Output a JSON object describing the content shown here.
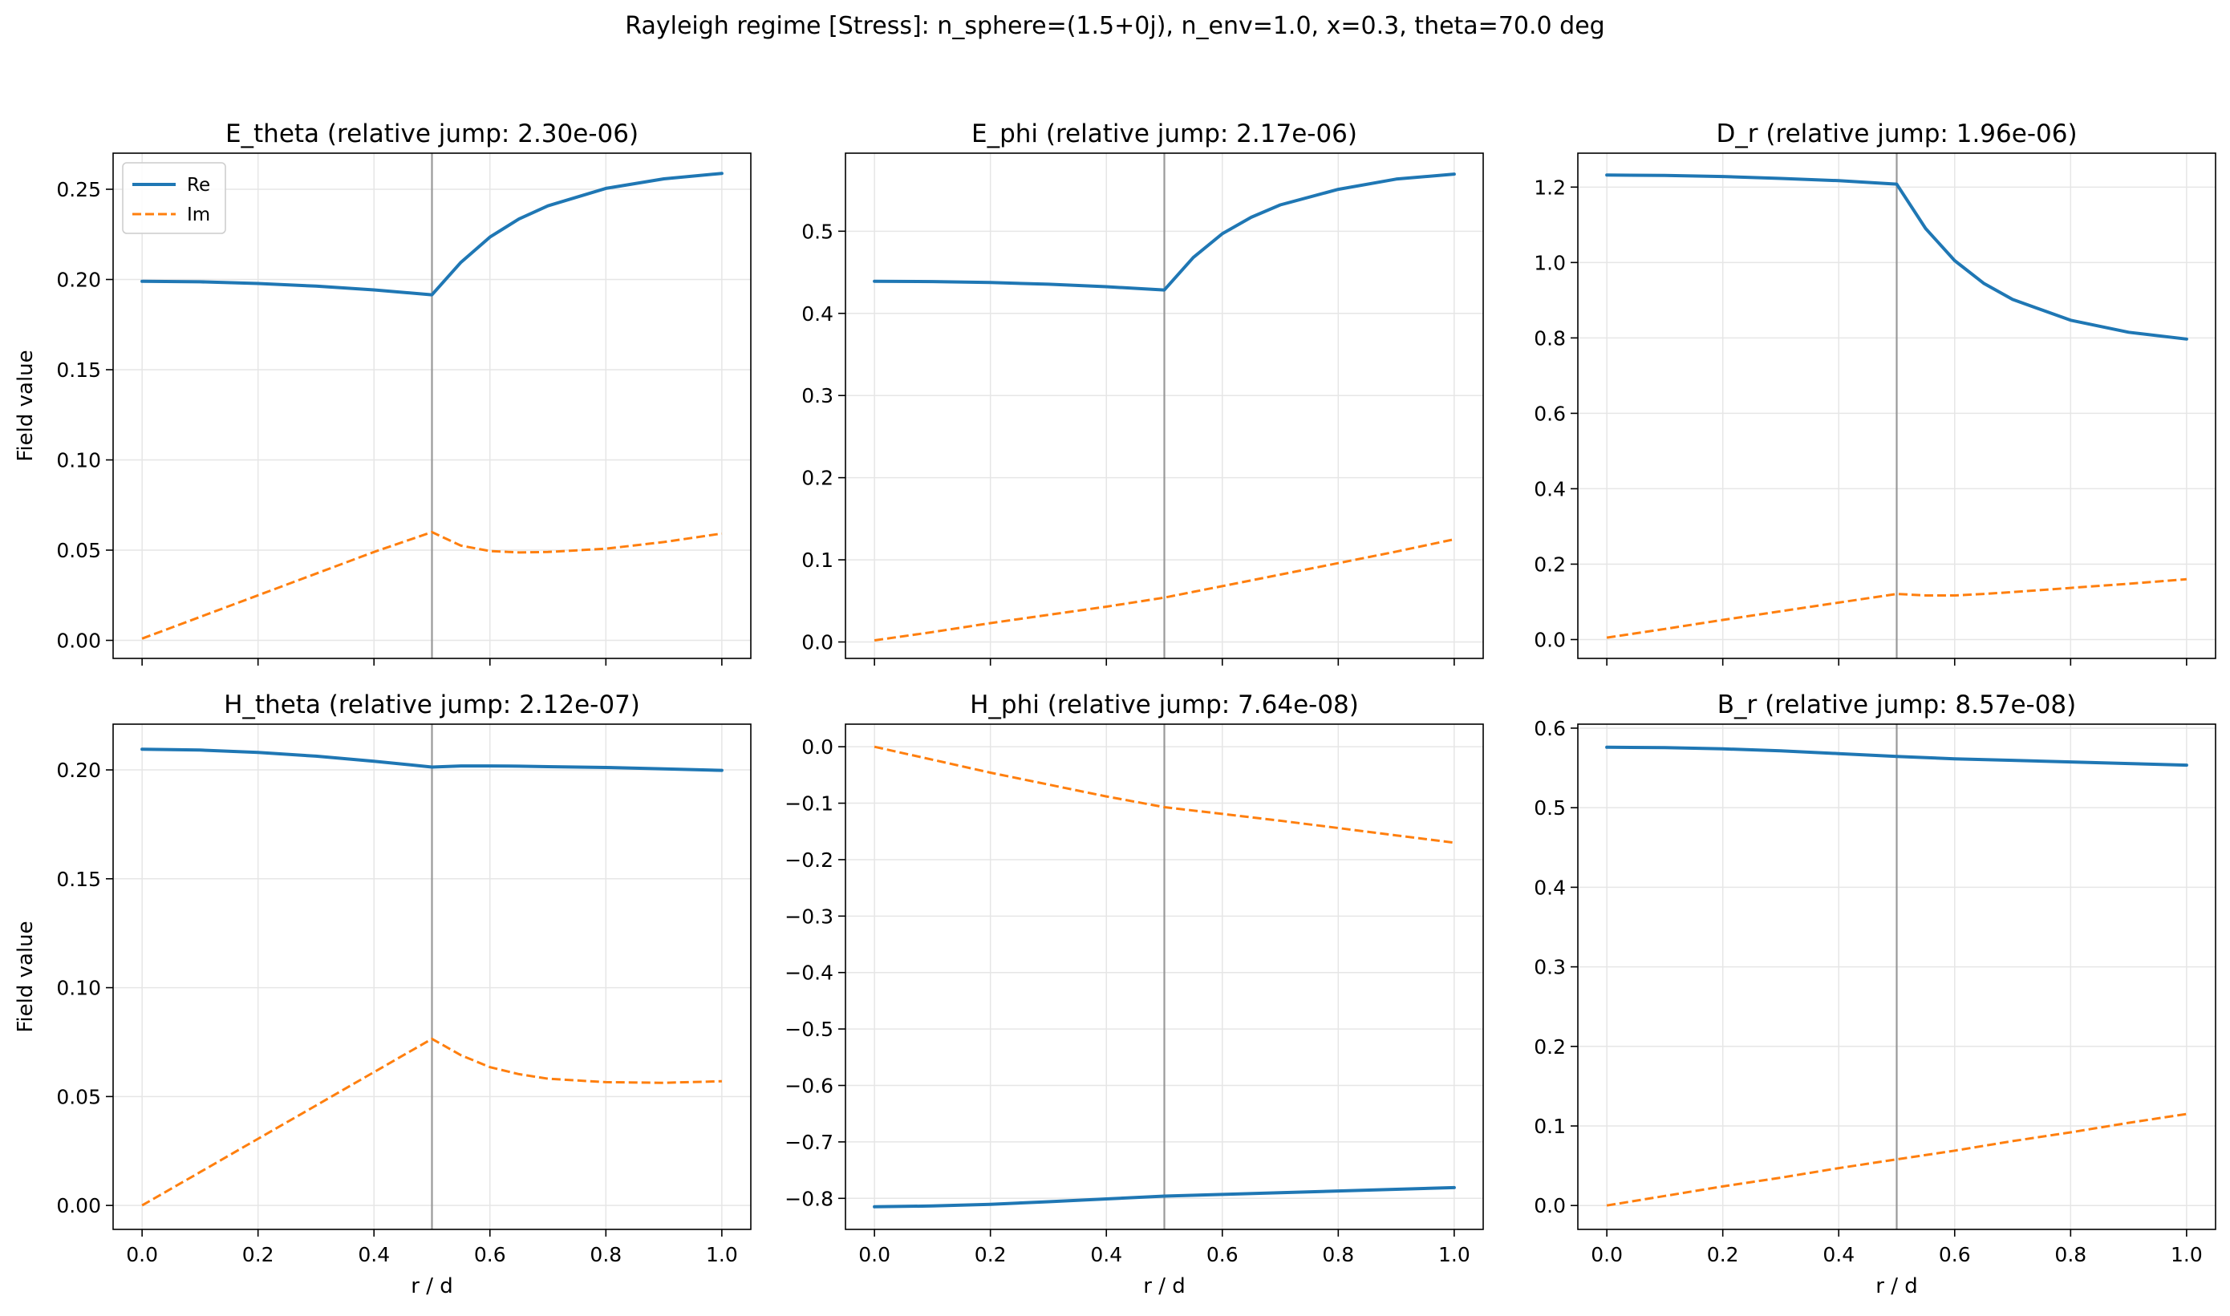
{
  "figure": {
    "suptitle": "Rayleigh regime [Stress]: n_sphere=(1.5+0j), n_env=1.0, x=0.3, theta=70.0 deg"
  },
  "colors": {
    "re": "#1f77b4",
    "im": "#ff7f0e",
    "boundary": "#999999",
    "grid": "#e6e6e6"
  },
  "legend": {
    "placement": "upper-left",
    "entries": [
      "Re",
      "Im"
    ]
  },
  "chart_data": [
    {
      "type": "line",
      "title": "E_theta (relative jump: 2.30e-06)",
      "xlabel": "",
      "ylabel": "Field value",
      "xlim": [
        -0.05,
        1.05
      ],
      "ylim": [
        -0.01,
        0.27
      ],
      "xticks": [
        0.0,
        0.2,
        0.4,
        0.6,
        0.8,
        1.0
      ],
      "xtick_labels": false,
      "yticks": [
        0.0,
        0.05,
        0.1,
        0.15,
        0.2,
        0.25
      ],
      "yticklabels": [
        "0.00",
        "0.05",
        "0.10",
        "0.15",
        "0.20",
        "0.25"
      ],
      "boundary_x": 0.5,
      "grid": true,
      "legend": true,
      "x": [
        0.0,
        0.1,
        0.2,
        0.3,
        0.4,
        0.5,
        0.55,
        0.6,
        0.65,
        0.7,
        0.8,
        0.9,
        1.0
      ],
      "series": [
        {
          "name": "Re",
          "style": "solid",
          "values": [
            0.199,
            0.1987,
            0.1978,
            0.1963,
            0.1942,
            0.1915,
            0.2095,
            0.2235,
            0.2335,
            0.2408,
            0.2505,
            0.2558,
            0.2588
          ]
        },
        {
          "name": "Im",
          "style": "dashed",
          "values": [
            0.001,
            0.013,
            0.025,
            0.037,
            0.049,
            0.06,
            0.0525,
            0.0495,
            0.0487,
            0.049,
            0.0508,
            0.0545,
            0.0592
          ]
        }
      ]
    },
    {
      "type": "line",
      "title": "E_phi (relative jump: 2.17e-06)",
      "xlabel": "",
      "ylabel": "",
      "xlim": [
        -0.05,
        1.05
      ],
      "ylim": [
        -0.02,
        0.595
      ],
      "xticks": [
        0.0,
        0.2,
        0.4,
        0.6,
        0.8,
        1.0
      ],
      "xtick_labels": false,
      "yticks": [
        0.0,
        0.1,
        0.2,
        0.3,
        0.4,
        0.5
      ],
      "yticklabels": [
        "0.0",
        "0.1",
        "0.2",
        "0.3",
        "0.4",
        "0.5"
      ],
      "boundary_x": 0.5,
      "grid": true,
      "legend": false,
      "x": [
        0.0,
        0.1,
        0.2,
        0.3,
        0.4,
        0.5,
        0.55,
        0.6,
        0.65,
        0.7,
        0.8,
        0.9,
        1.0
      ],
      "series": [
        {
          "name": "Re",
          "style": "solid",
          "values": [
            0.439,
            0.4387,
            0.4375,
            0.4355,
            0.4325,
            0.4285,
            0.468,
            0.497,
            0.517,
            0.532,
            0.551,
            0.5635,
            0.5695
          ]
        },
        {
          "name": "Im",
          "style": "dashed",
          "values": [
            0.002,
            0.012,
            0.023,
            0.033,
            0.043,
            0.054,
            0.061,
            0.068,
            0.075,
            0.082,
            0.096,
            0.11,
            0.125
          ]
        }
      ]
    },
    {
      "type": "line",
      "title": "D_r (relative jump: 1.96e-06)",
      "xlabel": "",
      "ylabel": "",
      "xlim": [
        -0.05,
        1.05
      ],
      "ylim": [
        -0.05,
        1.29
      ],
      "xticks": [
        0.0,
        0.2,
        0.4,
        0.6,
        0.8,
        1.0
      ],
      "xtick_labels": false,
      "yticks": [
        0.0,
        0.2,
        0.4,
        0.6,
        0.8,
        1.0,
        1.2
      ],
      "yticklabels": [
        "0.0",
        "0.2",
        "0.4",
        "0.6",
        "0.8",
        "1.0",
        "1.2"
      ],
      "boundary_x": 0.5,
      "grid": true,
      "legend": false,
      "x": [
        0.0,
        0.1,
        0.2,
        0.3,
        0.4,
        0.5,
        0.55,
        0.6,
        0.65,
        0.7,
        0.8,
        0.9,
        1.0
      ],
      "series": [
        {
          "name": "Re",
          "style": "solid",
          "values": [
            1.232,
            1.231,
            1.228,
            1.223,
            1.217,
            1.208,
            1.09,
            1.005,
            0.945,
            0.902,
            0.847,
            0.815,
            0.797
          ]
        },
        {
          "name": "Im",
          "style": "dashed",
          "values": [
            0.005,
            0.028,
            0.052,
            0.075,
            0.098,
            0.121,
            0.117,
            0.117,
            0.121,
            0.126,
            0.137,
            0.148,
            0.16
          ]
        }
      ]
    },
    {
      "type": "line",
      "title": "H_theta (relative jump: 2.12e-07)",
      "xlabel": "r / d",
      "ylabel": "Field value",
      "xlim": [
        -0.05,
        1.05
      ],
      "ylim": [
        -0.011,
        0.221
      ],
      "xticks": [
        0.0,
        0.2,
        0.4,
        0.6,
        0.8,
        1.0
      ],
      "xtick_labels": true,
      "xticklabels": [
        "0.0",
        "0.2",
        "0.4",
        "0.6",
        "0.8",
        "1.0"
      ],
      "yticks": [
        0.0,
        0.05,
        0.1,
        0.15,
        0.2
      ],
      "yticklabels": [
        "0.00",
        "0.05",
        "0.10",
        "0.15",
        "0.20"
      ],
      "boundary_x": 0.5,
      "grid": true,
      "legend": false,
      "x": [
        0.0,
        0.1,
        0.2,
        0.3,
        0.4,
        0.5,
        0.55,
        0.6,
        0.65,
        0.7,
        0.8,
        0.9,
        1.0
      ],
      "series": [
        {
          "name": "Re",
          "style": "solid",
          "values": [
            0.2095,
            0.2091,
            0.208,
            0.2063,
            0.204,
            0.2013,
            0.2018,
            0.2018,
            0.2017,
            0.2015,
            0.2011,
            0.2005,
            0.1998
          ]
        },
        {
          "name": "Im",
          "style": "dashed",
          "values": [
            0.0,
            0.0153,
            0.0306,
            0.0459,
            0.0612,
            0.0765,
            0.069,
            0.0635,
            0.0603,
            0.0582,
            0.0566,
            0.0563,
            0.057
          ]
        }
      ]
    },
    {
      "type": "line",
      "title": "H_phi (relative jump: 7.64e-08)",
      "xlabel": "r / d",
      "ylabel": "",
      "xlim": [
        -0.05,
        1.05
      ],
      "ylim": [
        -0.855,
        0.04
      ],
      "xticks": [
        0.0,
        0.2,
        0.4,
        0.6,
        0.8,
        1.0
      ],
      "xtick_labels": true,
      "xticklabels": [
        "0.0",
        "0.2",
        "0.4",
        "0.6",
        "0.8",
        "1.0"
      ],
      "yticks": [
        0.0,
        -0.1,
        -0.2,
        -0.3,
        -0.4,
        -0.5,
        -0.6,
        -0.7,
        -0.8
      ],
      "yticklabels": [
        "0.0",
        "−0.1",
        "−0.2",
        "−0.3",
        "−0.4",
        "−0.5",
        "−0.6",
        "−0.7",
        "−0.8"
      ],
      "boundary_x": 0.5,
      "grid": true,
      "legend": false,
      "x": [
        0.0,
        0.1,
        0.2,
        0.3,
        0.4,
        0.5,
        0.6,
        0.7,
        0.8,
        0.9,
        1.0
      ],
      "series": [
        {
          "name": "Re",
          "style": "solid",
          "values": [
            -0.815,
            -0.8135,
            -0.8105,
            -0.806,
            -0.801,
            -0.796,
            -0.793,
            -0.79,
            -0.787,
            -0.784,
            -0.781
          ]
        },
        {
          "name": "Im",
          "style": "dashed",
          "values": [
            0.0,
            -0.023,
            -0.046,
            -0.067,
            -0.088,
            -0.107,
            -0.119,
            -0.131,
            -0.144,
            -0.157,
            -0.17
          ]
        }
      ]
    },
    {
      "type": "line",
      "title": "B_r (relative jump: 8.57e-08)",
      "xlabel": "r / d",
      "ylabel": "",
      "xlim": [
        -0.05,
        1.05
      ],
      "ylim": [
        -0.03,
        0.605
      ],
      "xticks": [
        0.0,
        0.2,
        0.4,
        0.6,
        0.8,
        1.0
      ],
      "xtick_labels": true,
      "xticklabels": [
        "0.0",
        "0.2",
        "0.4",
        "0.6",
        "0.8",
        "1.0"
      ],
      "yticks": [
        0.0,
        0.1,
        0.2,
        0.3,
        0.4,
        0.5,
        0.6
      ],
      "yticklabels": [
        "0.0",
        "0.1",
        "0.2",
        "0.3",
        "0.4",
        "0.5",
        "0.6"
      ],
      "boundary_x": 0.5,
      "grid": true,
      "legend": false,
      "x": [
        0.0,
        0.1,
        0.2,
        0.3,
        0.4,
        0.5,
        0.6,
        0.7,
        0.8,
        0.9,
        1.0
      ],
      "series": [
        {
          "name": "Re",
          "style": "solid",
          "values": [
            0.576,
            0.5755,
            0.574,
            0.5715,
            0.568,
            0.5645,
            0.5615,
            0.5595,
            0.5575,
            0.5555,
            0.5535
          ]
        },
        {
          "name": "Im",
          "style": "dashed",
          "values": [
            0.0,
            0.012,
            0.024,
            0.035,
            0.047,
            0.058,
            0.069,
            0.081,
            0.092,
            0.104,
            0.115
          ]
        }
      ]
    }
  ]
}
